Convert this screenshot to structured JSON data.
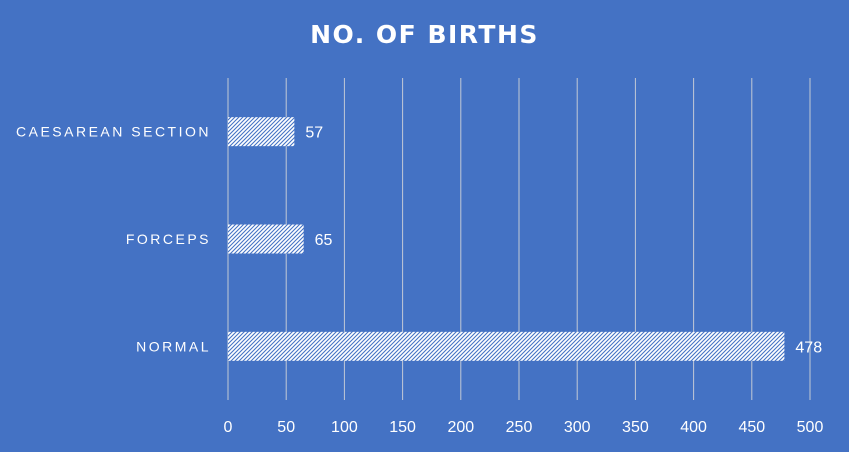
{
  "chart_data": {
    "type": "bar",
    "orientation": "horizontal",
    "title": "NO. OF BIRTHS",
    "xlabel": "",
    "ylabel": "",
    "categories": [
      "CAESAREAN SECTION",
      "FORCEPS",
      "NORMAL"
    ],
    "values": [
      57,
      65,
      478
    ],
    "xlim": [
      0,
      500
    ],
    "ticks": [
      0,
      50,
      100,
      150,
      200,
      250,
      300,
      350,
      400,
      450,
      500
    ],
    "grid": true,
    "legend": "none",
    "data_labels": true,
    "bar_pattern": "hatched",
    "colors": {
      "background": "#4472c4",
      "bar": "#ffffff",
      "text": "#ffffff",
      "grid": "#d9d9d9"
    }
  }
}
